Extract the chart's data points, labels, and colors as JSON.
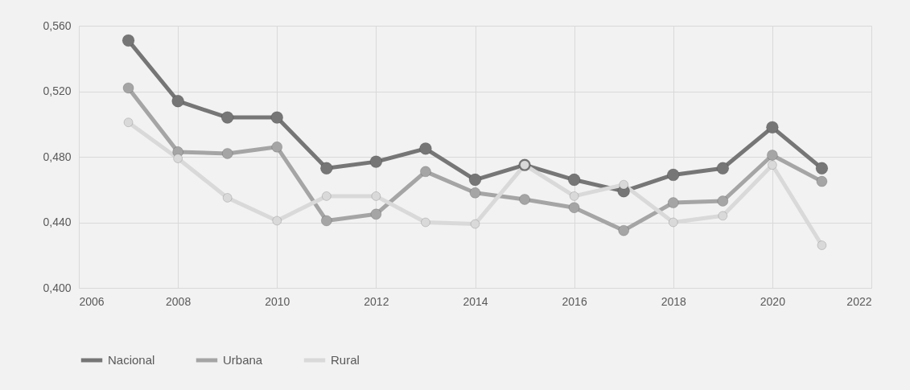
{
  "chart_data": {
    "type": "line",
    "x": [
      2007,
      2008,
      2009,
      2010,
      2011,
      2012,
      2013,
      2014,
      2015,
      2016,
      2017,
      2018,
      2019,
      2020,
      2021
    ],
    "series": [
      {
        "name": "Nacional",
        "color": "#767676",
        "values": [
          0.551,
          0.514,
          0.504,
          0.504,
          0.473,
          0.477,
          0.485,
          0.466,
          0.475,
          0.466,
          0.459,
          0.469,
          0.473,
          0.498,
          0.473
        ]
      },
      {
        "name": "Urbana",
        "color": "#a5a5a5",
        "values": [
          0.522,
          0.483,
          0.482,
          0.486,
          0.441,
          0.445,
          0.471,
          0.458,
          0.454,
          0.449,
          0.435,
          0.452,
          0.453,
          0.481,
          0.465
        ]
      },
      {
        "name": "Rural",
        "color": "#d9d9d9",
        "values": [
          0.501,
          0.479,
          0.455,
          0.441,
          0.456,
          0.456,
          0.44,
          0.439,
          0.475,
          0.456,
          0.463,
          0.44,
          0.444,
          0.475,
          0.426
        ]
      }
    ],
    "xlim": [
      2006,
      2022
    ],
    "xticks": [
      2006,
      2008,
      2010,
      2012,
      2014,
      2016,
      2018,
      2020,
      2022
    ],
    "ylim": [
      0.4,
      0.56
    ],
    "yticks": [
      {
        "value": 0.4,
        "label": "0,400"
      },
      {
        "value": 0.44,
        "label": "0,440"
      },
      {
        "value": 0.48,
        "label": "0,480"
      },
      {
        "value": 0.52,
        "label": "0,520"
      },
      {
        "value": 0.56,
        "label": "0,560"
      }
    ],
    "grid": true,
    "legend": "bottom",
    "marker": "circle",
    "line_style": "solid"
  }
}
